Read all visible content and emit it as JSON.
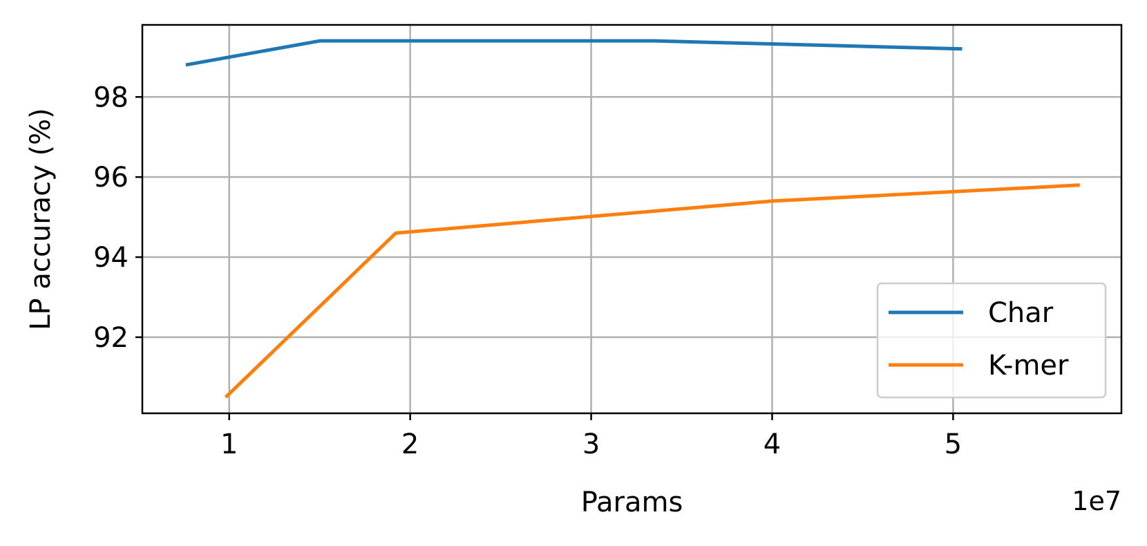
{
  "chart_data": {
    "type": "line",
    "title": "",
    "xlabel": "Params",
    "ylabel": "LP accuracy (%)",
    "x_offset_label": "1e7",
    "xlim": [
      0.52,
      5.93
    ],
    "ylim": [
      90.1,
      99.8
    ],
    "xticks": [
      1,
      2,
      3,
      4,
      5
    ],
    "xtick_labels": [
      "1",
      "2",
      "3",
      "4",
      "5"
    ],
    "yticks": [
      92,
      94,
      96,
      98
    ],
    "ytick_labels": [
      "92",
      "94",
      "96",
      "98"
    ],
    "grid": true,
    "legend_position": "lower-right",
    "series": [
      {
        "name": "Char",
        "color": "#1f77b4",
        "x": [
          0.76,
          1.5,
          3.35,
          5.05
        ],
        "y": [
          98.8,
          99.4,
          99.4,
          99.2
        ]
      },
      {
        "name": "K-mer",
        "color": "#ff7f0e",
        "x": [
          0.98,
          1.92,
          4.0,
          5.7
        ],
        "y": [
          90.5,
          94.6,
          95.4,
          95.8
        ]
      }
    ]
  }
}
